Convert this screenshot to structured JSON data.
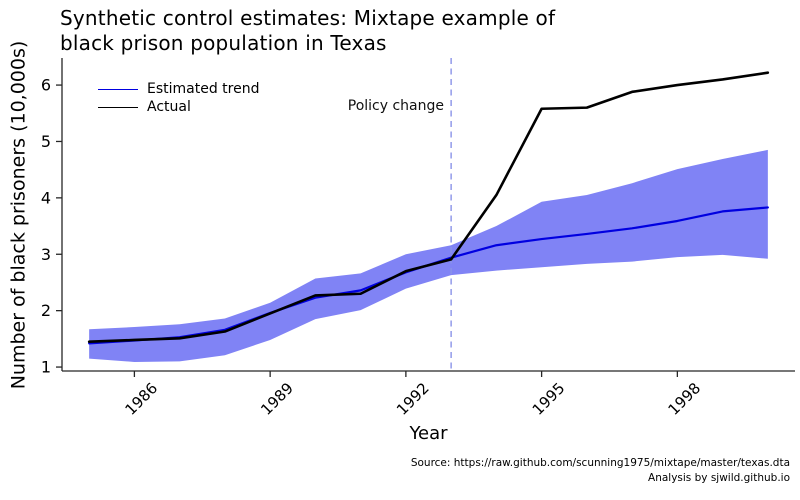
{
  "title": {
    "line1": "Synthetic control estimates: Mixtape example of",
    "line2": "black prison population in Texas"
  },
  "legend": {
    "estimated": "Estimated trend",
    "actual": "Actual"
  },
  "annotation": {
    "policy_label": "Policy change",
    "policy_year": 1993
  },
  "footer": {
    "source": "Source: https://raw.github.com/scunning1975/mixtape/master/texas.dta",
    "analysis": "Analysis by sjwild.github.io"
  },
  "colors": {
    "estimated_line": "#0000e0",
    "actual_line": "#000000",
    "band": "#8083f5",
    "policy_line": "#8a93e8",
    "axis": "#262626"
  },
  "chart_data": {
    "type": "line",
    "title": "Synthetic control estimates: Mixtape example of black prison population in Texas",
    "xlabel": "Year",
    "ylabel": "Number of black prisoners (10,000s)",
    "x": [
      1985,
      1986,
      1987,
      1988,
      1989,
      1990,
      1991,
      1992,
      1993,
      1994,
      1995,
      1996,
      1997,
      1998,
      1999,
      2000
    ],
    "series": [
      {
        "name": "Estimated trend",
        "color": "#0000e0",
        "values": [
          1.42,
          1.47,
          1.53,
          1.66,
          1.96,
          2.23,
          2.36,
          2.68,
          2.94,
          3.16,
          3.27,
          3.36,
          3.46,
          3.59,
          3.76,
          3.83
        ]
      },
      {
        "name": "Actual",
        "color": "#000000",
        "values": [
          1.45,
          1.48,
          1.51,
          1.63,
          1.95,
          2.27,
          2.3,
          2.7,
          2.91,
          4.05,
          5.58,
          5.6,
          5.88,
          6.0,
          6.1,
          6.22
        ]
      }
    ],
    "band": {
      "series": "Estimated trend",
      "lower": [
        1.15,
        1.09,
        1.1,
        1.21,
        1.48,
        1.85,
        2.01,
        2.39,
        2.63,
        2.71,
        2.77,
        2.83,
        2.87,
        2.95,
        2.99,
        2.92
      ],
      "upper": [
        1.67,
        1.71,
        1.76,
        1.86,
        2.14,
        2.57,
        2.66,
        3.0,
        3.16,
        3.5,
        3.93,
        4.05,
        4.26,
        4.51,
        4.69,
        4.85
      ]
    },
    "vline": {
      "x": 1993,
      "label": "Policy change"
    },
    "x_ticks": [
      1986,
      1989,
      1992,
      1995,
      1998
    ],
    "y_ticks": [
      1,
      2,
      3,
      4,
      5,
      6
    ],
    "xlim": [
      1984.4,
      2000.6
    ],
    "ylim": [
      0.93,
      6.48
    ],
    "legend_position": "top-left",
    "grid": false
  }
}
